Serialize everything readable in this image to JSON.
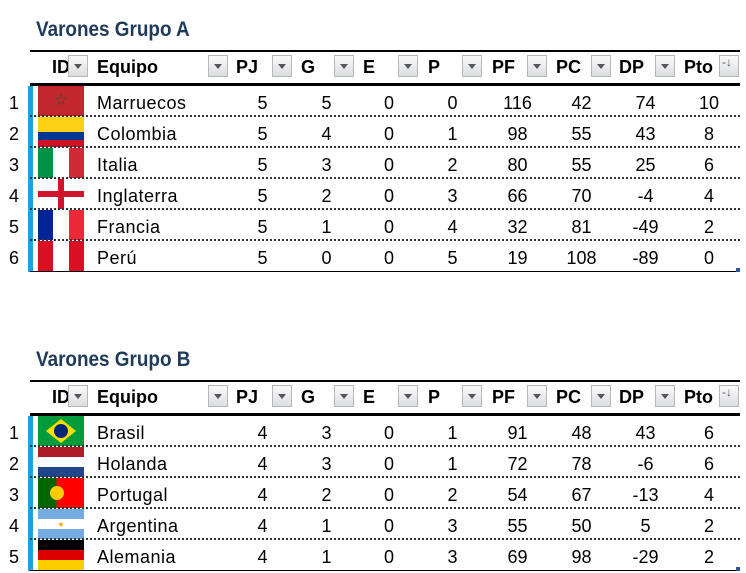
{
  "columns": [
    "ID",
    "Equipo",
    "PJ",
    "G",
    "E",
    "P",
    "PF",
    "PC",
    "DP",
    "Pto"
  ],
  "groups": [
    {
      "title": "Varones Grupo A",
      "rows": [
        {
          "id": "1",
          "flag": "morocco",
          "team": "Marruecos",
          "pj": "5",
          "g": "5",
          "e": "0",
          "p": "0",
          "pf": "116",
          "pc": "42",
          "dp": "74",
          "pto": "10"
        },
        {
          "id": "2",
          "flag": "colombia",
          "team": "Colombia",
          "pj": "5",
          "g": "4",
          "e": "0",
          "p": "1",
          "pf": "98",
          "pc": "55",
          "dp": "43",
          "pto": "8"
        },
        {
          "id": "3",
          "flag": "italy",
          "team": "Italia",
          "pj": "5",
          "g": "3",
          "e": "0",
          "p": "2",
          "pf": "80",
          "pc": "55",
          "dp": "25",
          "pto": "6"
        },
        {
          "id": "4",
          "flag": "england",
          "team": "Inglaterra",
          "pj": "5",
          "g": "2",
          "e": "0",
          "p": "3",
          "pf": "66",
          "pc": "70",
          "dp": "-4",
          "pto": "4"
        },
        {
          "id": "5",
          "flag": "france",
          "team": "Francia",
          "pj": "5",
          "g": "1",
          "e": "0",
          "p": "4",
          "pf": "32",
          "pc": "81",
          "dp": "-49",
          "pto": "2"
        },
        {
          "id": "6",
          "flag": "peru",
          "team": "Perú",
          "pj": "5",
          "g": "0",
          "e": "0",
          "p": "5",
          "pf": "19",
          "pc": "108",
          "dp": "-89",
          "pto": "0"
        }
      ]
    },
    {
      "title": "Varones Grupo B",
      "rows": [
        {
          "id": "1",
          "flag": "brazil",
          "team": "Brasil",
          "pj": "4",
          "g": "3",
          "e": "0",
          "p": "1",
          "pf": "91",
          "pc": "48",
          "dp": "43",
          "pto": "6"
        },
        {
          "id": "2",
          "flag": "netherlands",
          "team": "Holanda",
          "pj": "4",
          "g": "3",
          "e": "0",
          "p": "1",
          "pf": "72",
          "pc": "78",
          "dp": "-6",
          "pto": "6"
        },
        {
          "id": "3",
          "flag": "portugal",
          "team": "Portugal",
          "pj": "4",
          "g": "2",
          "e": "0",
          "p": "2",
          "pf": "54",
          "pc": "67",
          "dp": "-13",
          "pto": "4"
        },
        {
          "id": "4",
          "flag": "argentina",
          "team": "Argentina",
          "pj": "4",
          "g": "1",
          "e": "0",
          "p": "3",
          "pf": "55",
          "pc": "50",
          "dp": "5",
          "pto": "2"
        },
        {
          "id": "5",
          "flag": "germany",
          "team": "Alemania",
          "pj": "4",
          "g": "1",
          "e": "0",
          "p": "3",
          "pf": "69",
          "pc": "98",
          "dp": "-29",
          "pto": "2"
        }
      ]
    }
  ]
}
